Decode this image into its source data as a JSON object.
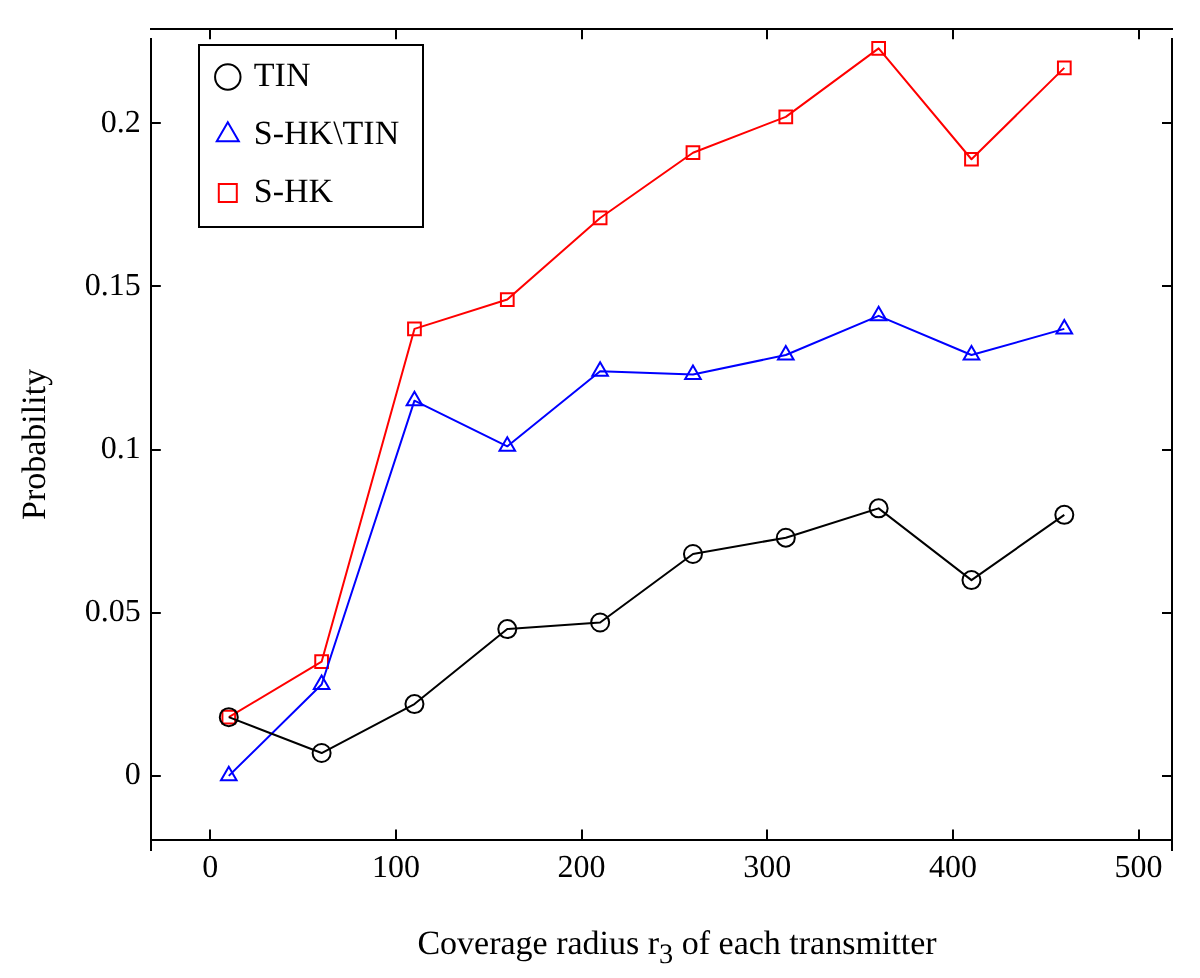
{
  "chart_data": {
    "type": "line",
    "xlabel": "Coverage radius r$_{3}$ of each transmitter",
    "ylabel": "Probability",
    "x": [
      10,
      60,
      110,
      160,
      210,
      260,
      310,
      360,
      410,
      460
    ],
    "series": [
      {
        "name": "TIN",
        "color": "#000000",
        "marker": "circle",
        "values": [
          0.018,
          0.007,
          0.022,
          0.045,
          0.047,
          0.068,
          0.073,
          0.082,
          0.06,
          0.08
        ]
      },
      {
        "name": "S-HK\\TIN",
        "color": "#0000ff",
        "marker": "triangle",
        "values": [
          0,
          0.028,
          0.115,
          0.101,
          0.124,
          0.123,
          0.129,
          0.141,
          0.129,
          0.137
        ]
      },
      {
        "name": "S-HK",
        "color": "#ff0000",
        "marker": "square",
        "values": [
          0.018,
          0.035,
          0.137,
          0.146,
          0.171,
          0.191,
          0.202,
          0.223,
          0.189,
          0.217
        ]
      }
    ],
    "xlim": [
      -32,
      518
    ],
    "xticks": [
      0,
      100,
      200,
      300,
      400,
      500
    ],
    "ylim": [
      -0.0226,
      0.2258
    ],
    "yticks": [
      0,
      0.05,
      0.1,
      0.15,
      0.2
    ],
    "grid": false,
    "legend": "top left",
    "line_style": "solid"
  }
}
